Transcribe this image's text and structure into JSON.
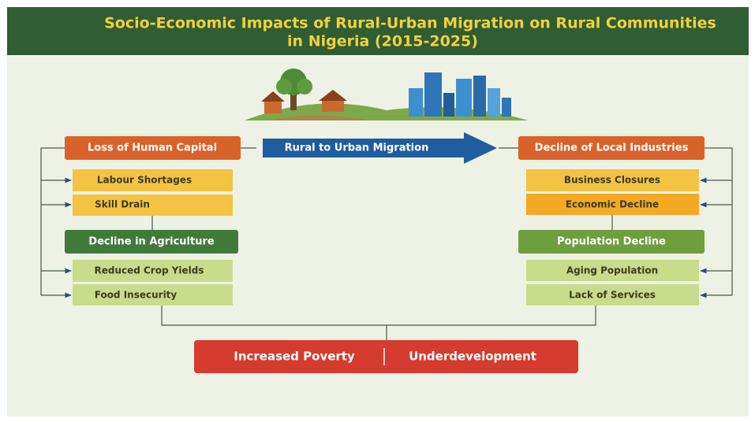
{
  "header": {
    "title_line1": "Socio-Economic Impacts of Rural-Urban Migration on Rural Communities",
    "title_line2": "in Nigeria (2015-2025)"
  },
  "migration_arrow": {
    "label": "Rural to Urban Migration"
  },
  "left": [
    {
      "title": "Loss of Human Capital",
      "items": [
        "Labour Shortages",
        "Skill Drain"
      ]
    },
    {
      "title": "Decline in Agriculture",
      "items": [
        "Reduced Crop Yields",
        "Food Insecurity"
      ]
    }
  ],
  "right": [
    {
      "title": "Decline of Local Industries",
      "items": [
        "Business Closures",
        "Economic Decline"
      ]
    },
    {
      "title": "Population Decline",
      "items": [
        "Aging Population",
        "Lack of Services"
      ]
    }
  ],
  "outcome": {
    "items": [
      "Increased Poverty",
      "Underdevelopment"
    ]
  }
}
